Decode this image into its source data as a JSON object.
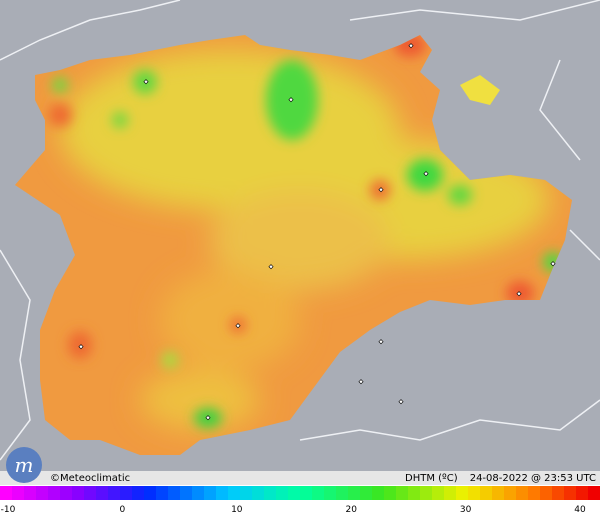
{
  "footer": {
    "brand": "©Meteoclimatic",
    "variable": "DHTM (ºC)",
    "timestamp": "24-08-2022 @ 23:53 UTC"
  },
  "scale": {
    "ticks": [
      -10,
      0,
      10,
      20,
      30,
      40
    ]
  }
}
